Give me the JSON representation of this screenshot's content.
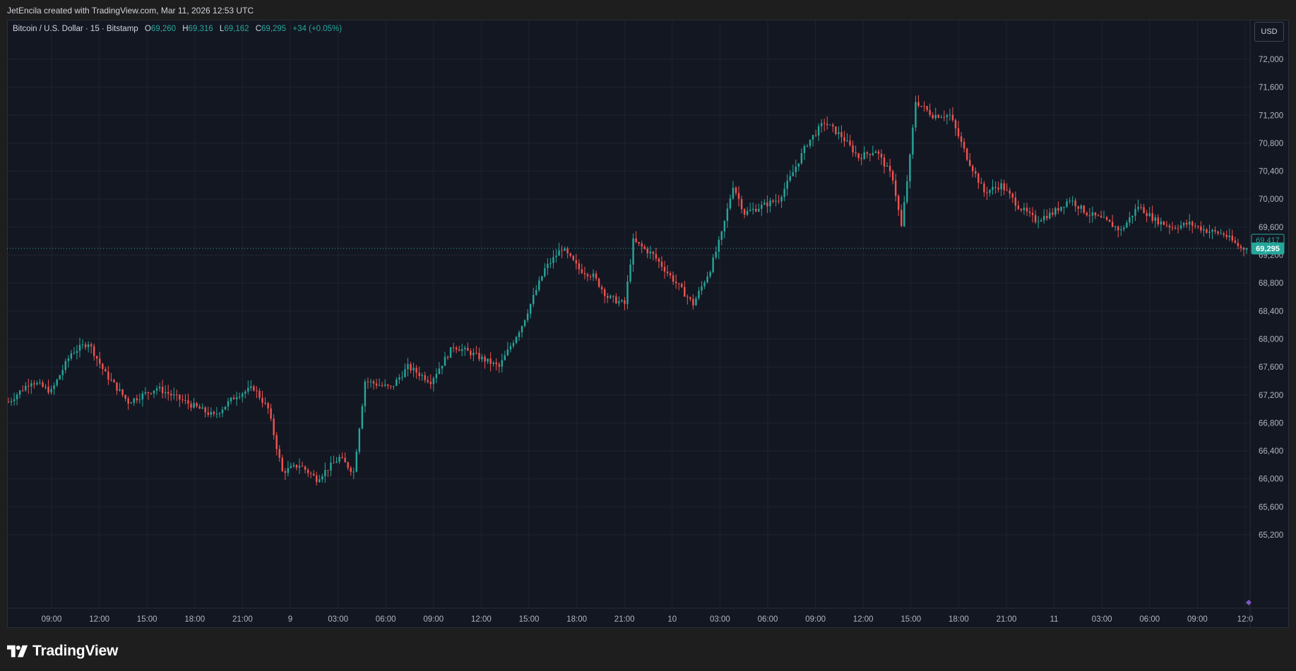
{
  "header": {
    "credit": "JetEncila created with TradingView.com, Mar 11, 2026 12:53 UTC"
  },
  "legend": {
    "symbol": "Bitcoin / U.S. Dollar · 15 · Bitstamp",
    "o_label": "O",
    "o_value": "69,260",
    "h_label": "H",
    "h_value": "69,316",
    "l_label": "L",
    "l_value": "69,162",
    "c_label": "C",
    "c_value": "69,295",
    "change": "+34 (+0.05%)"
  },
  "currency_button": "USD",
  "logo": {
    "text": "TradingView"
  },
  "colors": {
    "up": "#26a69a",
    "down": "#ef5350",
    "background": "#131722",
    "grid": "#1f2330"
  },
  "chart_data": {
    "type": "candlestick",
    "symbol": "Bitcoin / U.S. Dollar",
    "interval": "15",
    "exchange": "Bitstamp",
    "currency": "USD",
    "y_ticks": [
      65200,
      65600,
      66000,
      66400,
      66800,
      67200,
      67600,
      68000,
      68400,
      68800,
      69200,
      69600,
      70000,
      70400,
      70800,
      71200,
      71600,
      72000
    ],
    "y_tick_labels": [
      "65,200",
      "65,600",
      "66,000",
      "66,400",
      "66,800",
      "67,200",
      "67,600",
      "68,000",
      "68,400",
      "68,800",
      "69,200",
      "69,600",
      "70,000",
      "70,400",
      "70,800",
      "71,200",
      "71,600",
      "72,000"
    ],
    "ylim": [
      65000,
      72300
    ],
    "x_tick_labels": [
      "09:00",
      "12:00",
      "15:00",
      "18:00",
      "21:00",
      "9",
      "03:00",
      "06:00",
      "09:00",
      "12:00",
      "15:00",
      "18:00",
      "21:00",
      "10",
      "03:00",
      "06:00",
      "09:00",
      "12:00",
      "15:00",
      "18:00",
      "21:00",
      "11",
      "03:00",
      "06:00",
      "09:00",
      "12:0"
    ],
    "price_markers": [
      {
        "label": "69,417",
        "value": 69417,
        "style": "outline"
      },
      {
        "label": "69,295",
        "value": 69295,
        "style": "filled"
      }
    ],
    "current_price_line": 69295,
    "anchors": [
      [
        0,
        67100
      ],
      [
        8,
        67400
      ],
      [
        15,
        67250
      ],
      [
        22,
        67800
      ],
      [
        28,
        67950
      ],
      [
        34,
        67500
      ],
      [
        42,
        67100
      ],
      [
        52,
        67300
      ],
      [
        62,
        67100
      ],
      [
        72,
        66900
      ],
      [
        80,
        67200
      ],
      [
        86,
        67300
      ],
      [
        91,
        67000
      ],
      [
        96,
        66100
      ],
      [
        102,
        66200
      ],
      [
        108,
        66000
      ],
      [
        116,
        66300
      ],
      [
        121,
        66100
      ],
      [
        125,
        67400
      ],
      [
        134,
        67300
      ],
      [
        140,
        67600
      ],
      [
        148,
        67400
      ],
      [
        156,
        67900
      ],
      [
        162,
        67800
      ],
      [
        172,
        67600
      ],
      [
        180,
        68200
      ],
      [
        188,
        69000
      ],
      [
        194,
        69300
      ],
      [
        200,
        69000
      ],
      [
        205,
        68900
      ],
      [
        210,
        68600
      ],
      [
        216,
        68500
      ],
      [
        219,
        69400
      ],
      [
        226,
        69200
      ],
      [
        234,
        68800
      ],
      [
        240,
        68500
      ],
      [
        246,
        69000
      ],
      [
        250,
        69500
      ],
      [
        254,
        70200
      ],
      [
        258,
        69800
      ],
      [
        264,
        69900
      ],
      [
        270,
        70000
      ],
      [
        274,
        70300
      ],
      [
        280,
        70800
      ],
      [
        286,
        71100
      ],
      [
        292,
        70900
      ],
      [
        298,
        70600
      ],
      [
        304,
        70700
      ],
      [
        310,
        70300
      ],
      [
        313,
        69600
      ],
      [
        316,
        70600
      ],
      [
        318,
        71400
      ],
      [
        324,
        71200
      ],
      [
        330,
        71200
      ],
      [
        336,
        70600
      ],
      [
        342,
        70100
      ],
      [
        348,
        70200
      ],
      [
        354,
        69900
      ],
      [
        360,
        69700
      ],
      [
        366,
        69800
      ],
      [
        372,
        70000
      ],
      [
        378,
        69800
      ],
      [
        384,
        69700
      ],
      [
        390,
        69550
      ],
      [
        396,
        69900
      ],
      [
        402,
        69700
      ],
      [
        408,
        69600
      ],
      [
        414,
        69650
      ],
      [
        420,
        69550
      ],
      [
        426,
        69500
      ],
      [
        432,
        69300
      ],
      [
        434,
        69295
      ]
    ]
  }
}
